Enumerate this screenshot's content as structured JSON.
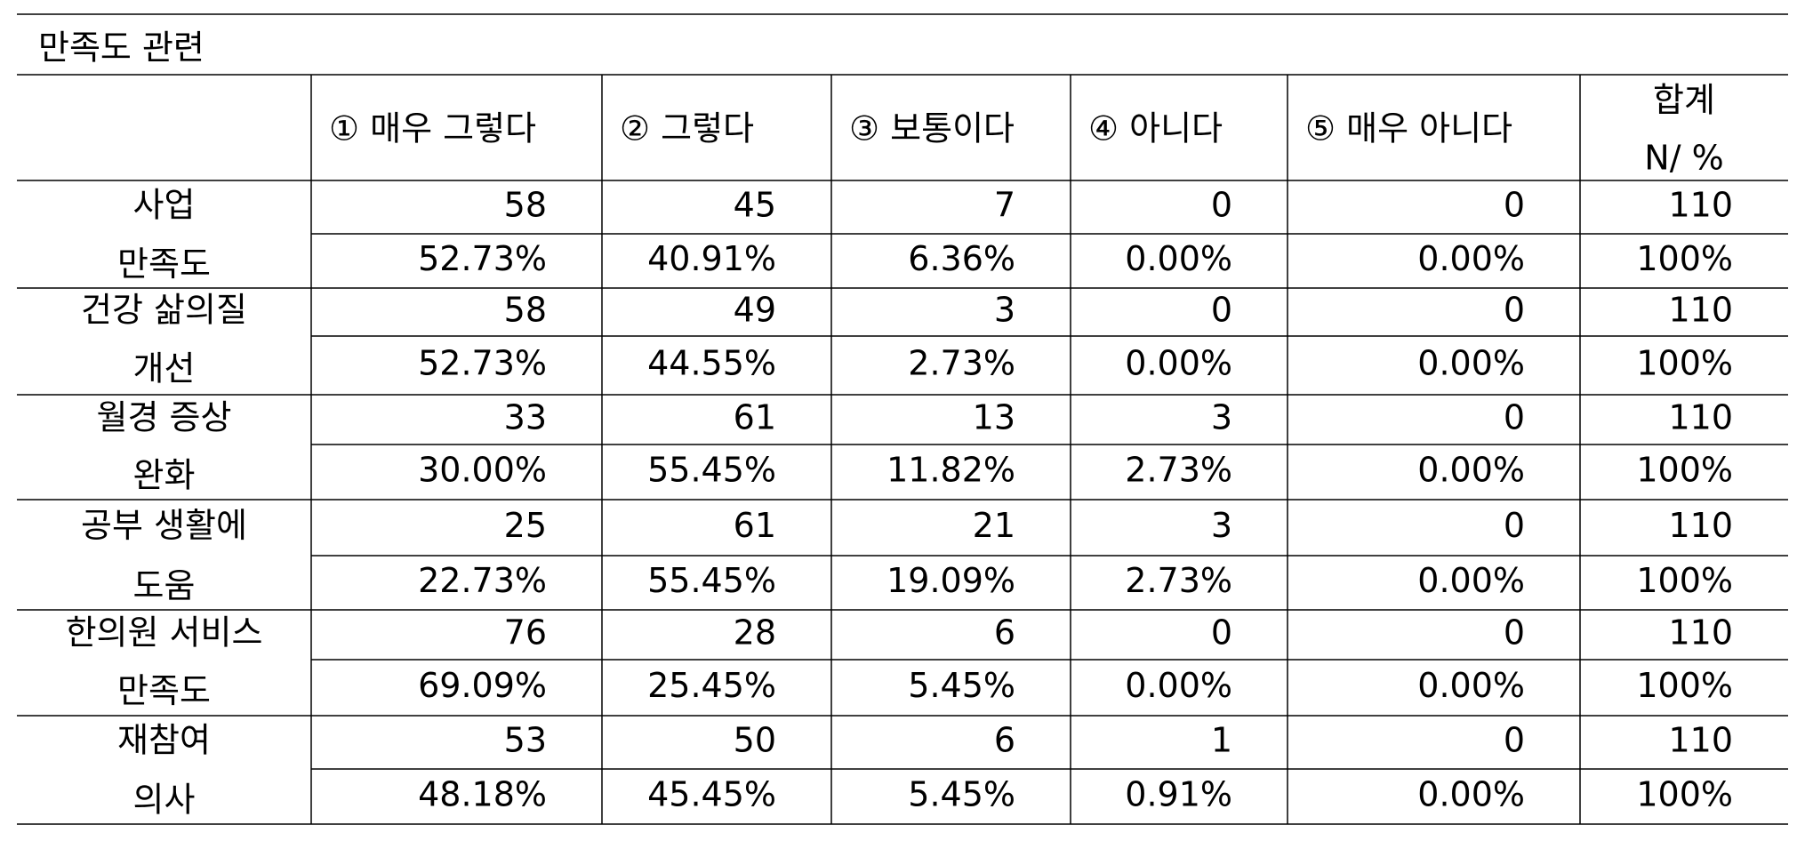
{
  "title": "만족도 관련",
  "table": {
    "header": [
      "",
      "① 매우 그렇다",
      "② 그렇다",
      "③ 보통이다",
      "④ 아니다",
      "⑤ 매우 아니다",
      [
        "합계",
        "N/ %"
      ]
    ],
    "rows": [
      {
        "label": [
          "사업",
          "만족도"
        ],
        "counts": [
          58,
          45,
          7,
          0,
          0,
          110
        ],
        "percents": [
          "52.73%",
          "40.91%",
          "6.36%",
          "0.00%",
          "0.00%",
          "100%"
        ]
      },
      {
        "label": [
          "건강 삶의질",
          "개선"
        ],
        "counts": [
          58,
          49,
          3,
          0,
          0,
          110
        ],
        "percents": [
          "52.73%",
          "44.55%",
          "2.73%",
          "0.00%",
          "0.00%",
          "100%"
        ]
      },
      {
        "label": [
          "월경 증상",
          "완화"
        ],
        "counts": [
          33,
          61,
          13,
          3,
          0,
          110
        ],
        "percents": [
          "30.00%",
          "55.45%",
          "11.82%",
          "2.73%",
          "0.00%",
          "100%"
        ]
      },
      {
        "label": [
          "공부 생활에",
          "도움"
        ],
        "counts": [
          25,
          61,
          21,
          3,
          0,
          110
        ],
        "percents": [
          "22.73%",
          "55.45%",
          "19.09%",
          "2.73%",
          "0.00%",
          "100%"
        ]
      },
      {
        "label": [
          "한의원 서비스",
          "만족도"
        ],
        "counts": [
          76,
          28,
          6,
          0,
          0,
          110
        ],
        "percents": [
          "69.09%",
          "25.45%",
          "5.45%",
          "0.00%",
          "0.00%",
          "100%"
        ]
      },
      {
        "label": [
          "재참여",
          "의사"
        ],
        "counts": [
          53,
          50,
          6,
          1,
          0,
          110
        ],
        "percents": [
          "48.18%",
          "45.45%",
          "5.45%",
          "0.91%",
          "0.00%",
          "100%"
        ]
      }
    ]
  }
}
